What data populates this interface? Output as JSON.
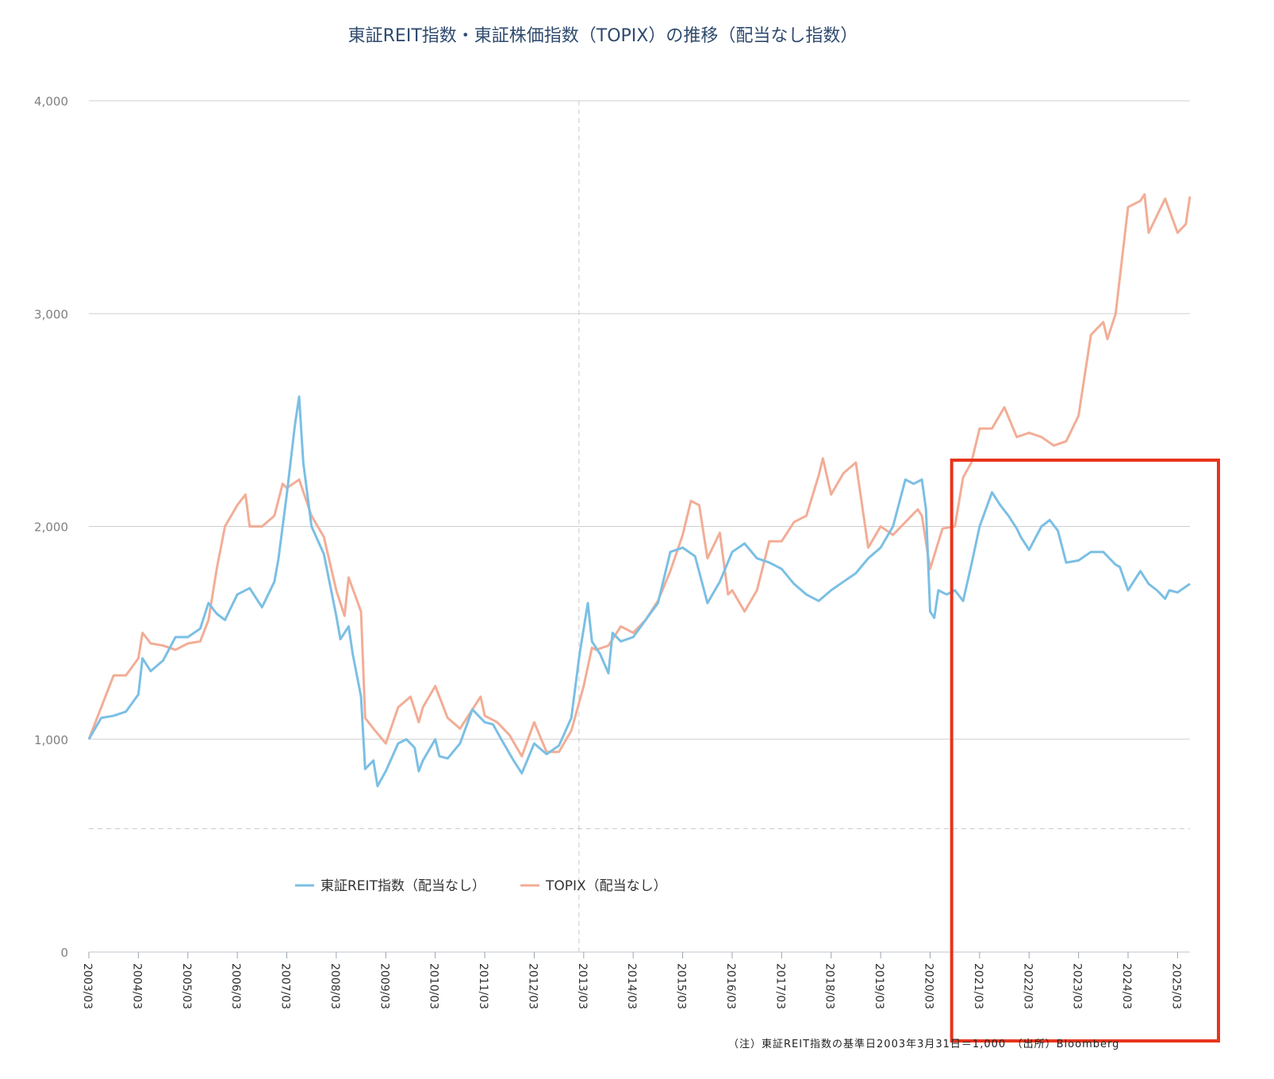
{
  "chart_data": {
    "type": "line",
    "title": "東証REIT指数・東証株価指数（TOPIX）の推移（配当なし指数）",
    "xlabel": "",
    "ylabel": "",
    "ylim": [
      0,
      4000
    ],
    "yticks": [
      "0",
      "1,000",
      "2,000",
      "3,000",
      "4,000"
    ],
    "grid": true,
    "legend_position": "bottom-center",
    "x_start": "2003/03",
    "x_end": "2025/06",
    "xticks": [
      "2003/03",
      "2004/03",
      "2005/03",
      "2006/03",
      "2007/03",
      "2008/03",
      "2009/03",
      "2010/03",
      "2011/03",
      "2012/03",
      "2013/03",
      "2014/03",
      "2015/03",
      "2016/03",
      "2017/03",
      "2018/03",
      "2019/03",
      "2020/03",
      "2021/03",
      "2022/03",
      "2023/03",
      "2024/03",
      "2025/03"
    ],
    "series": [
      {
        "name": "東証REIT指数（配当なし）",
        "color": "#7bbfe4",
        "points": [
          [
            "2003/03",
            1000
          ],
          [
            "2003/06",
            1100
          ],
          [
            "2003/09",
            1110
          ],
          [
            "2003/12",
            1130
          ],
          [
            "2004/03",
            1210
          ],
          [
            "2004/04",
            1380
          ],
          [
            "2004/06",
            1320
          ],
          [
            "2004/09",
            1370
          ],
          [
            "2004/12",
            1480
          ],
          [
            "2005/03",
            1480
          ],
          [
            "2005/06",
            1520
          ],
          [
            "2005/08",
            1640
          ],
          [
            "2005/10",
            1590
          ],
          [
            "2005/12",
            1560
          ],
          [
            "2006/03",
            1680
          ],
          [
            "2006/06",
            1710
          ],
          [
            "2006/09",
            1620
          ],
          [
            "2006/12",
            1740
          ],
          [
            "2007/01",
            1850
          ],
          [
            "2007/03",
            2150
          ],
          [
            "2007/05",
            2480
          ],
          [
            "2007/06",
            2610
          ],
          [
            "2007/07",
            2300
          ],
          [
            "2007/09",
            2000
          ],
          [
            "2007/12",
            1870
          ],
          [
            "2008/03",
            1580
          ],
          [
            "2008/04",
            1470
          ],
          [
            "2008/06",
            1530
          ],
          [
            "2008/07",
            1400
          ],
          [
            "2008/09",
            1200
          ],
          [
            "2008/10",
            860
          ],
          [
            "2008/12",
            900
          ],
          [
            "2009/01",
            780
          ],
          [
            "2009/03",
            850
          ],
          [
            "2009/06",
            980
          ],
          [
            "2009/08",
            1000
          ],
          [
            "2009/10",
            960
          ],
          [
            "2009/11",
            850
          ],
          [
            "2009/12",
            900
          ],
          [
            "2010/03",
            1000
          ],
          [
            "2010/04",
            920
          ],
          [
            "2010/06",
            910
          ],
          [
            "2010/09",
            980
          ],
          [
            "2010/12",
            1140
          ],
          [
            "2011/03",
            1080
          ],
          [
            "2011/05",
            1070
          ],
          [
            "2011/07",
            1000
          ],
          [
            "2011/10",
            900
          ],
          [
            "2011/12",
            840
          ],
          [
            "2012/03",
            980
          ],
          [
            "2012/06",
            930
          ],
          [
            "2012/09",
            970
          ],
          [
            "2012/12",
            1100
          ],
          [
            "2013/02",
            1400
          ],
          [
            "2013/04",
            1640
          ],
          [
            "2013/05",
            1460
          ],
          [
            "2013/07",
            1400
          ],
          [
            "2013/09",
            1310
          ],
          [
            "2013/10",
            1500
          ],
          [
            "2013/12",
            1460
          ],
          [
            "2014/03",
            1480
          ],
          [
            "2014/06",
            1560
          ],
          [
            "2014/09",
            1640
          ],
          [
            "2014/12",
            1880
          ],
          [
            "2015/03",
            1900
          ],
          [
            "2015/06",
            1860
          ],
          [
            "2015/09",
            1640
          ],
          [
            "2015/12",
            1740
          ],
          [
            "2016/03",
            1880
          ],
          [
            "2016/06",
            1920
          ],
          [
            "2016/09",
            1850
          ],
          [
            "2016/12",
            1830
          ],
          [
            "2017/03",
            1800
          ],
          [
            "2017/06",
            1730
          ],
          [
            "2017/09",
            1680
          ],
          [
            "2017/12",
            1650
          ],
          [
            "2018/03",
            1700
          ],
          [
            "2018/06",
            1740
          ],
          [
            "2018/09",
            1780
          ],
          [
            "2018/12",
            1850
          ],
          [
            "2019/03",
            1900
          ],
          [
            "2019/06",
            2000
          ],
          [
            "2019/09",
            2220
          ],
          [
            "2019/11",
            2200
          ],
          [
            "2020/01",
            2220
          ],
          [
            "2020/02",
            2080
          ],
          [
            "2020/03",
            1600
          ],
          [
            "2020/04",
            1570
          ],
          [
            "2020/05",
            1700
          ],
          [
            "2020/07",
            1680
          ],
          [
            "2020/09",
            1700
          ],
          [
            "2020/11",
            1650
          ],
          [
            "2021/01",
            1820
          ],
          [
            "2021/03",
            2000
          ],
          [
            "2021/06",
            2160
          ],
          [
            "2021/08",
            2100
          ],
          [
            "2021/10",
            2050
          ],
          [
            "2021/12",
            1990
          ],
          [
            "2022/01",
            1950
          ],
          [
            "2022/03",
            1890
          ],
          [
            "2022/06",
            2000
          ],
          [
            "2022/08",
            2030
          ],
          [
            "2022/10",
            1980
          ],
          [
            "2022/12",
            1830
          ],
          [
            "2023/03",
            1840
          ],
          [
            "2023/06",
            1880
          ],
          [
            "2023/09",
            1880
          ],
          [
            "2023/12",
            1820
          ],
          [
            "2024/01",
            1810
          ],
          [
            "2024/03",
            1700
          ],
          [
            "2024/06",
            1790
          ],
          [
            "2024/08",
            1730
          ],
          [
            "2024/10",
            1700
          ],
          [
            "2024/12",
            1660
          ],
          [
            "2025/01",
            1700
          ],
          [
            "2025/03",
            1690
          ],
          [
            "2025/06",
            1730
          ]
        ]
      },
      {
        "name": "TOPIX（配当なし）",
        "color": "#f2ad96",
        "points": [
          [
            "2003/03",
            1000
          ],
          [
            "2003/06",
            1150
          ],
          [
            "2003/09",
            1300
          ],
          [
            "2003/12",
            1300
          ],
          [
            "2004/03",
            1380
          ],
          [
            "2004/04",
            1500
          ],
          [
            "2004/06",
            1450
          ],
          [
            "2004/09",
            1440
          ],
          [
            "2004/12",
            1420
          ],
          [
            "2005/03",
            1450
          ],
          [
            "2005/06",
            1460
          ],
          [
            "2005/08",
            1560
          ],
          [
            "2005/10",
            1800
          ],
          [
            "2005/12",
            2000
          ],
          [
            "2006/03",
            2100
          ],
          [
            "2006/05",
            2150
          ],
          [
            "2006/06",
            2000
          ],
          [
            "2006/09",
            2000
          ],
          [
            "2006/12",
            2050
          ],
          [
            "2007/02",
            2200
          ],
          [
            "2007/03",
            2180
          ],
          [
            "2007/06",
            2220
          ],
          [
            "2007/09",
            2050
          ],
          [
            "2007/12",
            1950
          ],
          [
            "2008/03",
            1700
          ],
          [
            "2008/05",
            1580
          ],
          [
            "2008/06",
            1760
          ],
          [
            "2008/09",
            1600
          ],
          [
            "2008/10",
            1100
          ],
          [
            "2008/12",
            1050
          ],
          [
            "2009/03",
            980
          ],
          [
            "2009/06",
            1150
          ],
          [
            "2009/09",
            1200
          ],
          [
            "2009/11",
            1080
          ],
          [
            "2009/12",
            1150
          ],
          [
            "2010/03",
            1250
          ],
          [
            "2010/06",
            1100
          ],
          [
            "2010/09",
            1050
          ],
          [
            "2010/12",
            1140
          ],
          [
            "2011/02",
            1200
          ],
          [
            "2011/03",
            1110
          ],
          [
            "2011/06",
            1080
          ],
          [
            "2011/09",
            1020
          ],
          [
            "2011/12",
            920
          ],
          [
            "2012/03",
            1080
          ],
          [
            "2012/06",
            940
          ],
          [
            "2012/09",
            940
          ],
          [
            "2012/12",
            1040
          ],
          [
            "2013/03",
            1250
          ],
          [
            "2013/05",
            1430
          ],
          [
            "2013/06",
            1420
          ],
          [
            "2013/09",
            1440
          ],
          [
            "2013/12",
            1530
          ],
          [
            "2014/03",
            1500
          ],
          [
            "2014/06",
            1560
          ],
          [
            "2014/09",
            1650
          ],
          [
            "2014/12",
            1790
          ],
          [
            "2015/03",
            1960
          ],
          [
            "2015/05",
            2120
          ],
          [
            "2015/07",
            2100
          ],
          [
            "2015/09",
            1850
          ],
          [
            "2015/12",
            1970
          ],
          [
            "2016/02",
            1680
          ],
          [
            "2016/03",
            1700
          ],
          [
            "2016/06",
            1600
          ],
          [
            "2016/09",
            1700
          ],
          [
            "2016/12",
            1930
          ],
          [
            "2017/03",
            1930
          ],
          [
            "2017/06",
            2020
          ],
          [
            "2017/09",
            2050
          ],
          [
            "2017/12",
            2240
          ],
          [
            "2018/01",
            2320
          ],
          [
            "2018/03",
            2150
          ],
          [
            "2018/06",
            2250
          ],
          [
            "2018/09",
            2300
          ],
          [
            "2018/12",
            1900
          ],
          [
            "2019/03",
            2000
          ],
          [
            "2019/06",
            1960
          ],
          [
            "2019/09",
            2020
          ],
          [
            "2019/12",
            2080
          ],
          [
            "2020/01",
            2050
          ],
          [
            "2020/03",
            1800
          ],
          [
            "2020/06",
            1990
          ],
          [
            "2020/09",
            2000
          ],
          [
            "2020/11",
            2230
          ],
          [
            "2021/01",
            2300
          ],
          [
            "2021/03",
            2460
          ],
          [
            "2021/06",
            2460
          ],
          [
            "2021/09",
            2560
          ],
          [
            "2021/12",
            2420
          ],
          [
            "2022/03",
            2440
          ],
          [
            "2022/06",
            2420
          ],
          [
            "2022/09",
            2380
          ],
          [
            "2022/12",
            2400
          ],
          [
            "2023/03",
            2520
          ],
          [
            "2023/06",
            2900
          ],
          [
            "2023/09",
            2960
          ],
          [
            "2023/10",
            2880
          ],
          [
            "2023/12",
            3000
          ],
          [
            "2024/03",
            3500
          ],
          [
            "2024/06",
            3530
          ],
          [
            "2024/07",
            3560
          ],
          [
            "2024/08",
            3380
          ],
          [
            "2024/09",
            3420
          ],
          [
            "2024/12",
            3540
          ],
          [
            "2025/03",
            3380
          ],
          [
            "2025/05",
            3420
          ],
          [
            "2025/06",
            3550
          ]
        ]
      }
    ],
    "highlight_box": {
      "from": "2020/09",
      "to": "2025/06",
      "color": "#e8341c"
    },
    "note": "（注）東証REIT指数の基準日2003年3月31日＝1,000　（出所）Bloomberg"
  }
}
